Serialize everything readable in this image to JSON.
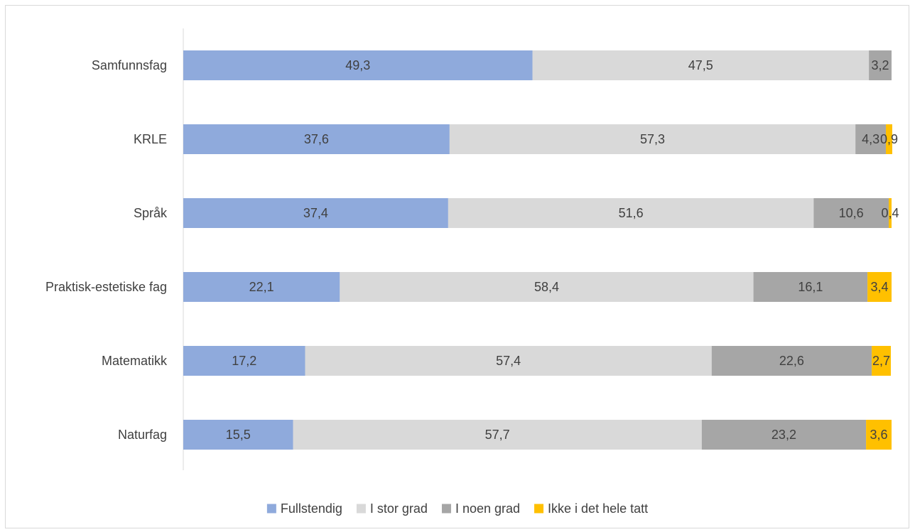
{
  "chart_data": {
    "type": "bar",
    "orientation": "horizontal",
    "stacked": true,
    "categories": [
      "Samfunnsfag",
      "KRLE",
      "Språk",
      "Praktisk-estetiske fag",
      "Matematikk",
      "Naturfag"
    ],
    "series": [
      {
        "name": "Fullstendig",
        "color": "#8faadc",
        "values": [
          49.3,
          37.6,
          37.4,
          22.1,
          17.2,
          15.5
        ],
        "labels": [
          "49,3",
          "37,6",
          "37,4",
          "22,1",
          "17,2",
          "15,5"
        ]
      },
      {
        "name": "I stor grad",
        "color": "#d9d9d9",
        "values": [
          47.5,
          57.3,
          51.6,
          58.4,
          57.4,
          57.7
        ],
        "labels": [
          "47,5",
          "57,3",
          "51,6",
          "58,4",
          "57,4",
          "57,7"
        ]
      },
      {
        "name": "I noen grad",
        "color": "#a6a6a6",
        "values": [
          3.2,
          4.3,
          10.6,
          16.1,
          22.6,
          23.2
        ],
        "labels": [
          "3,2",
          "4,3",
          "10,6",
          "16,1",
          "22,6",
          "23,2"
        ]
      },
      {
        "name": "Ikke i det hele tatt",
        "color": "#ffc000",
        "values": [
          0,
          0.9,
          0.4,
          3.4,
          2.7,
          3.6
        ],
        "labels": [
          "",
          "0,9",
          "0,4",
          "3,4",
          "2,7",
          "3,6"
        ]
      }
    ],
    "xlim": [
      0,
      100
    ],
    "legend_position": "bottom",
    "grid": false
  }
}
